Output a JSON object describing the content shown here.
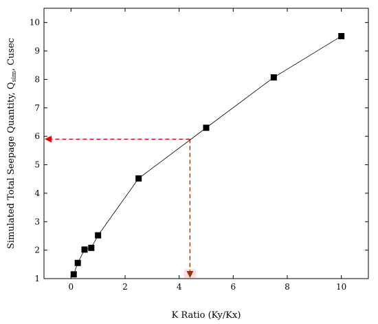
{
  "chart_data": {
    "type": "scatter",
    "xlabel": "K Ratio (Ky/Kx)",
    "ylabel": {
      "prefix": "Simulated Total Seepage Quantity, Q",
      "subscript": "sim",
      "suffix": ", Cusec"
    },
    "xlim": [
      -1,
      11
    ],
    "ylim": [
      1,
      10.5
    ],
    "xticks": [
      0,
      2,
      4,
      6,
      8,
      10
    ],
    "yticks": [
      1,
      2,
      3,
      4,
      5,
      6,
      7,
      8,
      9,
      10
    ],
    "series": [
      {
        "x": [
          0.1,
          0.25,
          0.5,
          0.75,
          1,
          2.5,
          5,
          7.5,
          10
        ],
        "y": [
          1.15,
          1.55,
          2.02,
          2.08,
          2.52,
          4.52,
          6.3,
          8.07,
          9.52
        ]
      }
    ],
    "annotation": {
      "x": 4.4,
      "y": 5.9,
      "h_color": "#e8000b",
      "v_color": "#8b3a0f",
      "marker_color": "#e8000b"
    },
    "grid": false,
    "legend": "none"
  }
}
